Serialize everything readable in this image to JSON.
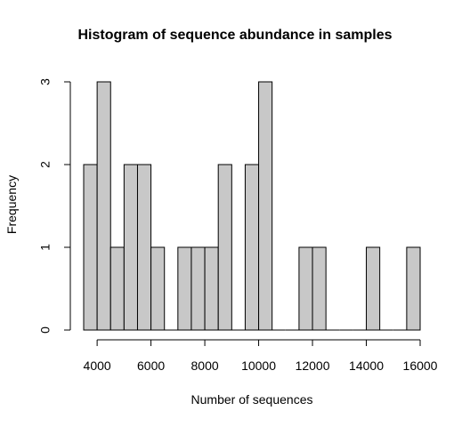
{
  "chart_data": {
    "type": "bar",
    "title": "Histogram of sequence abundance in samples",
    "xlabel": "Number of sequences",
    "ylabel": "Frequency",
    "bin_width": 500,
    "bins": [
      {
        "start": 3500,
        "end": 4000,
        "count": 2
      },
      {
        "start": 4000,
        "end": 4500,
        "count": 3
      },
      {
        "start": 4500,
        "end": 5000,
        "count": 1
      },
      {
        "start": 5000,
        "end": 5500,
        "count": 2
      },
      {
        "start": 5500,
        "end": 6000,
        "count": 2
      },
      {
        "start": 6000,
        "end": 6500,
        "count": 1
      },
      {
        "start": 6500,
        "end": 7000,
        "count": 0
      },
      {
        "start": 7000,
        "end": 7500,
        "count": 1
      },
      {
        "start": 7500,
        "end": 8000,
        "count": 1
      },
      {
        "start": 8000,
        "end": 8500,
        "count": 1
      },
      {
        "start": 8500,
        "end": 9000,
        "count": 2
      },
      {
        "start": 9000,
        "end": 9500,
        "count": 0
      },
      {
        "start": 9500,
        "end": 10000,
        "count": 2
      },
      {
        "start": 10000,
        "end": 10500,
        "count": 3
      },
      {
        "start": 10500,
        "end": 11000,
        "count": 0
      },
      {
        "start": 11000,
        "end": 11500,
        "count": 0
      },
      {
        "start": 11500,
        "end": 12000,
        "count": 1
      },
      {
        "start": 12000,
        "end": 12500,
        "count": 1
      },
      {
        "start": 12500,
        "end": 13000,
        "count": 0
      },
      {
        "start": 13000,
        "end": 13500,
        "count": 0
      },
      {
        "start": 13500,
        "end": 14000,
        "count": 0
      },
      {
        "start": 14000,
        "end": 14500,
        "count": 1
      },
      {
        "start": 14500,
        "end": 15000,
        "count": 0
      },
      {
        "start": 15000,
        "end": 15500,
        "count": 0
      },
      {
        "start": 15500,
        "end": 16000,
        "count": 1
      }
    ],
    "xlim": [
      3500,
      16000
    ],
    "ylim": [
      0,
      3
    ],
    "x_ticks": [
      4000,
      6000,
      8000,
      10000,
      12000,
      14000,
      16000
    ],
    "x_tick_labels": [
      "4000",
      "6000",
      "8000",
      "10000",
      "12000",
      "14000",
      "16000"
    ],
    "y_ticks": [
      0,
      1,
      2,
      3
    ],
    "y_tick_labels": [
      "0",
      "1",
      "2",
      "3"
    ],
    "grid": false,
    "legend": "none",
    "bar_fill": "#c8c8c8",
    "bar_stroke": "#000000"
  }
}
